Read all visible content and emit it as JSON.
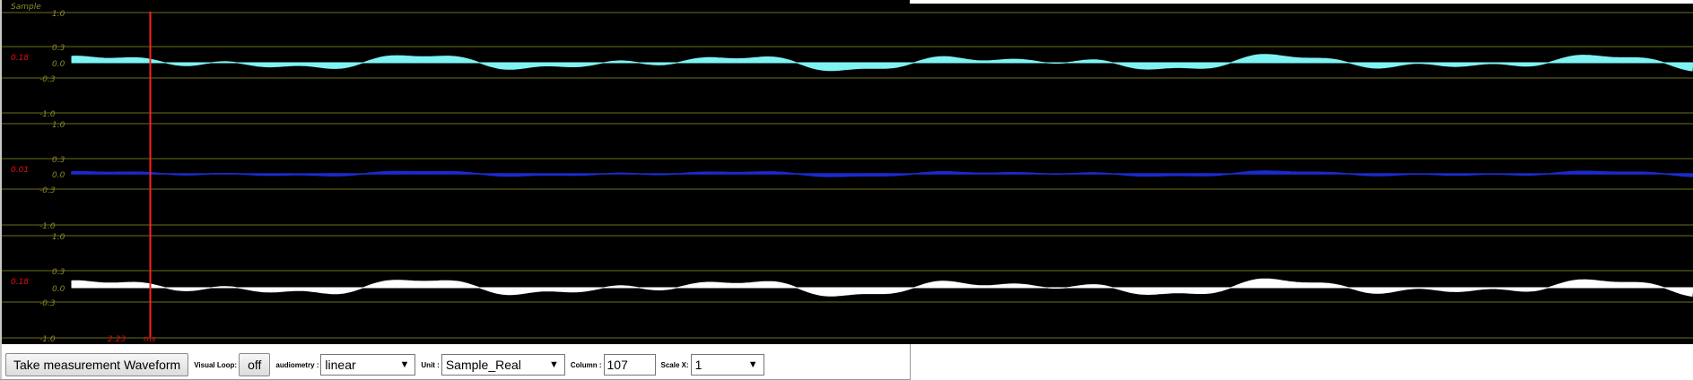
{
  "scope": {
    "header_label": "Sample",
    "cursor_value": "2.23",
    "cursor_unit": "ms",
    "cursor_fraction": 0.0885,
    "colors": {
      "background": "#000000",
      "grid": "#6e6e1e",
      "axis_label": "#8a8a2a",
      "readout": "#e01010",
      "cursor": "#ff2020"
    },
    "channels": [
      {
        "readout": "0.18",
        "ticks": [
          "1.0",
          "0.3",
          "0.0",
          "-0.3",
          "-1.0"
        ],
        "color": "#7ff3f3"
      },
      {
        "readout": "0.01",
        "ticks": [
          "1.0",
          "0.3",
          "0.0",
          "-0.3",
          "-1.0"
        ],
        "color": "#1a2bd0"
      },
      {
        "readout": "0.18",
        "ticks": [
          "1.0",
          "0.3",
          "0.0",
          "-0.3",
          "-1.0"
        ],
        "color": "#ffffff"
      }
    ]
  },
  "toolbar": {
    "measure_label": "Take measurement Waveform",
    "visual_loop_label": "Visual Loop:",
    "visual_loop_value": "off",
    "audiometry_label": "audiometry :",
    "audiometry_value": "linear",
    "unit_label": "Unit :",
    "unit_value": "Sample_Real",
    "column_label": "Column :",
    "column_value": "107",
    "scale_label": "Scale X:",
    "scale_value": "1"
  }
}
